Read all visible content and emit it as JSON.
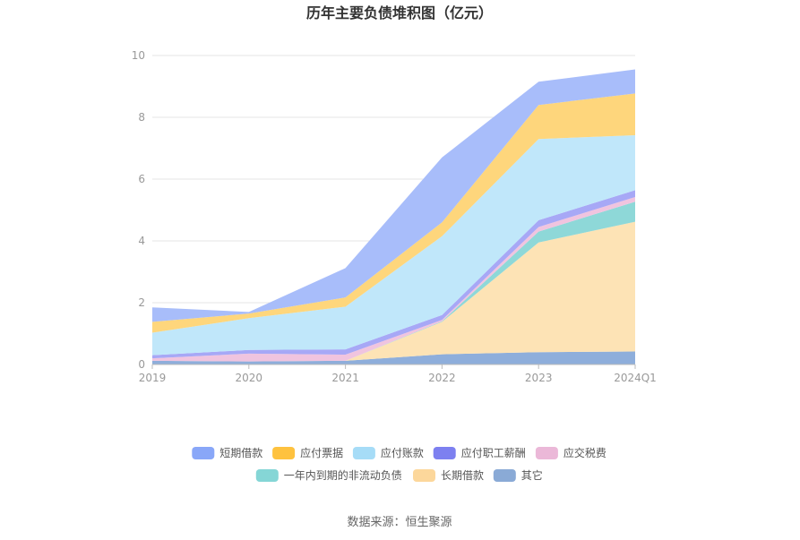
{
  "chart_data": {
    "type": "area",
    "stacked": true,
    "title": "历年主要负债堆积图（亿元）",
    "x": [
      "2019",
      "2020",
      "2021",
      "2022",
      "2023",
      "2024Q1"
    ],
    "ylim": [
      0,
      10
    ],
    "yticks": [
      "0",
      "2",
      "4",
      "6",
      "8",
      "10"
    ],
    "grid": true,
    "legend_position": "bottom",
    "series": [
      {
        "name": "其它",
        "color": "#8eaedb",
        "values": [
          0.12,
          0.1,
          0.12,
          0.33,
          0.4,
          0.42
        ]
      },
      {
        "name": "长期借款",
        "color": "#fde3b5",
        "values": [
          0.0,
          0.0,
          0.0,
          1.05,
          3.55,
          4.2
        ]
      },
      {
        "name": "一年内到期的非流动负债",
        "color": "#8ed8d8",
        "values": [
          0.0,
          0.0,
          0.0,
          0.02,
          0.35,
          0.65
        ]
      },
      {
        "name": "应交税费",
        "color": "#f0c4df",
        "values": [
          0.08,
          0.25,
          0.2,
          0.04,
          0.15,
          0.15
        ]
      },
      {
        "name": "应付职工薪酬",
        "color": "#a7a8f6",
        "values": [
          0.1,
          0.12,
          0.17,
          0.16,
          0.22,
          0.22
        ]
      },
      {
        "name": "应付账款",
        "color": "#c0e7fa",
        "values": [
          0.73,
          1.03,
          1.38,
          2.55,
          2.63,
          1.78
        ]
      },
      {
        "name": "应付票据",
        "color": "#fed67c",
        "values": [
          0.35,
          0.15,
          0.3,
          0.45,
          1.1,
          1.35
        ]
      },
      {
        "name": "短期借款",
        "color": "#a8bdfa",
        "values": [
          0.47,
          0.05,
          0.95,
          2.1,
          0.75,
          0.78
        ]
      }
    ],
    "legend": [
      {
        "name": "短期借款",
        "color": "#89a7f8"
      },
      {
        "name": "应付票据",
        "color": "#fec23f"
      },
      {
        "name": "应付账款",
        "color": "#a6dcf7"
      },
      {
        "name": "应付职工薪酬",
        "color": "#7d80f0"
      },
      {
        "name": "应交税费",
        "color": "#ebb8d8"
      },
      {
        "name": "一年内到期的非流动负债",
        "color": "#85d6d6"
      },
      {
        "name": "长期借款",
        "color": "#fcd79b"
      },
      {
        "name": "其它",
        "color": "#8aaad6"
      }
    ]
  },
  "source_text": "数据来源：恒生聚源"
}
